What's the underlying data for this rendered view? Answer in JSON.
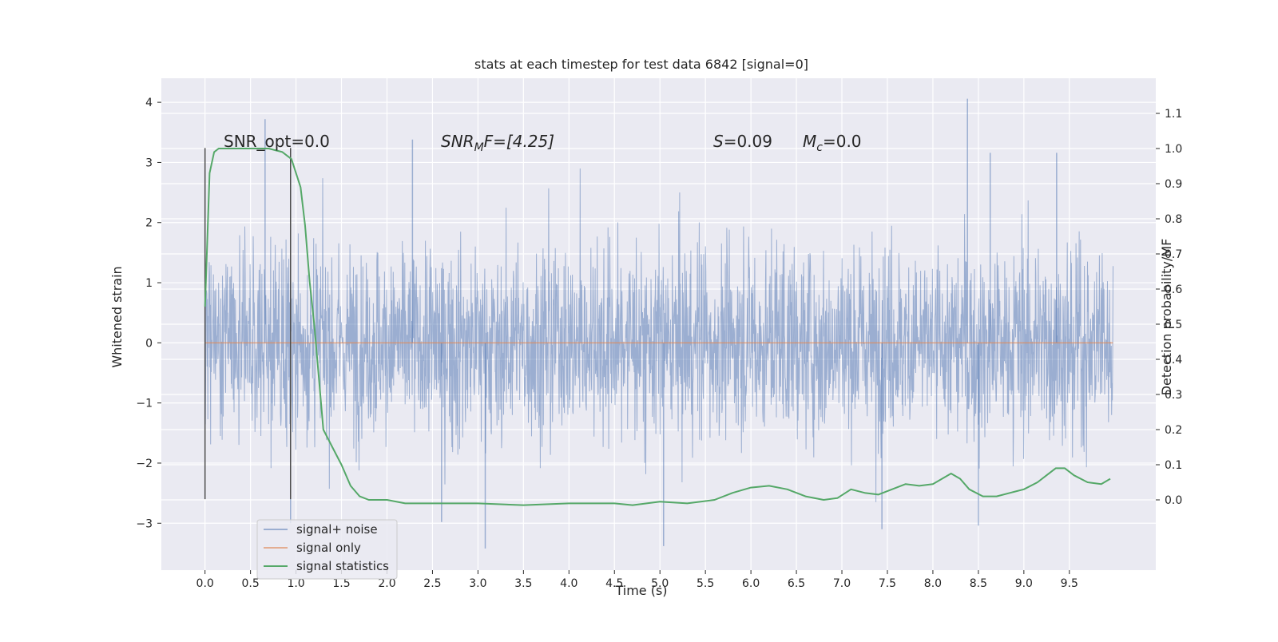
{
  "chart_data": {
    "type": "line",
    "title": "stats at each timestep for test data 6842 [signal=0]",
    "xlabel": "Time (s)",
    "ylabel": "Whitened strain",
    "ylabel_right": "Detection probability/MF",
    "xlim": [
      -0.48,
      10.45
    ],
    "ylim": [
      -3.78,
      4.4
    ],
    "ylim_right": [
      -0.2,
      1.2
    ],
    "x_ticks": [
      "0.0",
      "0.5",
      "1.0",
      "1.5",
      "2.0",
      "2.5",
      "3.0",
      "3.5",
      "4.0",
      "4.5",
      "5.0",
      "5.5",
      "6.0",
      "6.5",
      "7.0",
      "7.5",
      "8.0",
      "8.5",
      "9.0",
      "9.5"
    ],
    "y_ticks": [
      "−3",
      "−2",
      "−1",
      "0",
      "1",
      "2",
      "3",
      "4"
    ],
    "y_ticks_right": [
      "0.0",
      "0.1",
      "0.2",
      "0.3",
      "0.4",
      "0.5",
      "0.6",
      "0.7",
      "0.8",
      "0.9",
      "1.0",
      "1.1"
    ],
    "grid": true,
    "legend_position": "lower-left",
    "colors": {
      "background": "#eaeaf2",
      "grid": "#ffffff",
      "noise": "#4c72b0",
      "signal": "#dd8452",
      "statistics": "#55a868",
      "marker": "#4d4d4d"
    },
    "annotations": {
      "snr_opt": "SNR_opt=0.0",
      "snr_mf_base": "SNR",
      "snr_mf_sub": "M",
      "snr_mf_rest": "F=[4.25]",
      "s_base": "S",
      "s_rest": "=0.09",
      "mc_base": "M",
      "mc_sub": "c",
      "mc_rest": "=0.0"
    },
    "series": [
      {
        "name": "signal+ noise",
        "axis": "left",
        "note": "dense noise trace sampled at 2048 Hz",
        "peaks": [
          [
            0.66,
            3.72
          ],
          [
            2.28,
            3.38
          ],
          [
            8.38,
            4.06
          ],
          [
            8.63,
            3.16
          ],
          [
            9.36,
            3.16
          ],
          [
            3.08,
            -3.42
          ],
          [
            5.04,
            -3.38
          ],
          [
            0.94,
            -3.0
          ],
          [
            8.5,
            -3.04
          ],
          [
            7.44,
            -3.1
          ],
          [
            2.6,
            -2.98
          ]
        ]
      },
      {
        "name": "signal only",
        "axis": "left",
        "x": [
          0.0,
          9.98
        ],
        "y": [
          0.0,
          0.0
        ]
      },
      {
        "name": "signal statistics",
        "axis": "right",
        "x": [
          0.0,
          0.05,
          0.1,
          0.15,
          0.2,
          0.3,
          0.5,
          0.7,
          0.85,
          0.95,
          1.0,
          1.05,
          1.1,
          1.15,
          1.2,
          1.3,
          1.4,
          1.5,
          1.6,
          1.7,
          1.8,
          1.9,
          2.0,
          2.2,
          2.5,
          3.0,
          3.5,
          4.0,
          4.5,
          4.7,
          5.0,
          5.3,
          5.6,
          5.8,
          6.0,
          6.2,
          6.4,
          6.6,
          6.8,
          6.95,
          7.1,
          7.25,
          7.4,
          7.55,
          7.7,
          7.85,
          8.0,
          8.1,
          8.2,
          8.3,
          8.4,
          8.55,
          8.7,
          8.85,
          9.0,
          9.15,
          9.25,
          9.35,
          9.45,
          9.55,
          9.7,
          9.85,
          9.95
        ],
        "y": [
          0.55,
          0.93,
          0.99,
          1.0,
          1.0,
          1.0,
          1.0,
          1.0,
          0.99,
          0.97,
          0.93,
          0.89,
          0.78,
          0.62,
          0.5,
          0.2,
          0.15,
          0.1,
          0.04,
          0.01,
          0.0,
          0.0,
          0.0,
          -0.01,
          -0.01,
          -0.01,
          -0.015,
          -0.01,
          -0.01,
          -0.015,
          -0.005,
          -0.01,
          0.0,
          0.02,
          0.035,
          0.04,
          0.03,
          0.01,
          0.0,
          0.005,
          0.03,
          0.02,
          0.015,
          0.03,
          0.045,
          0.04,
          0.045,
          0.06,
          0.075,
          0.06,
          0.03,
          0.01,
          0.01,
          0.02,
          0.03,
          0.05,
          0.07,
          0.09,
          0.09,
          0.07,
          0.05,
          0.045,
          0.06
        ]
      }
    ],
    "marker_lines": [
      {
        "x": 0.0,
        "y": [
          -2.6,
          3.24
        ]
      },
      {
        "x": 0.94,
        "y": [
          -2.6,
          3.24
        ]
      }
    ]
  }
}
